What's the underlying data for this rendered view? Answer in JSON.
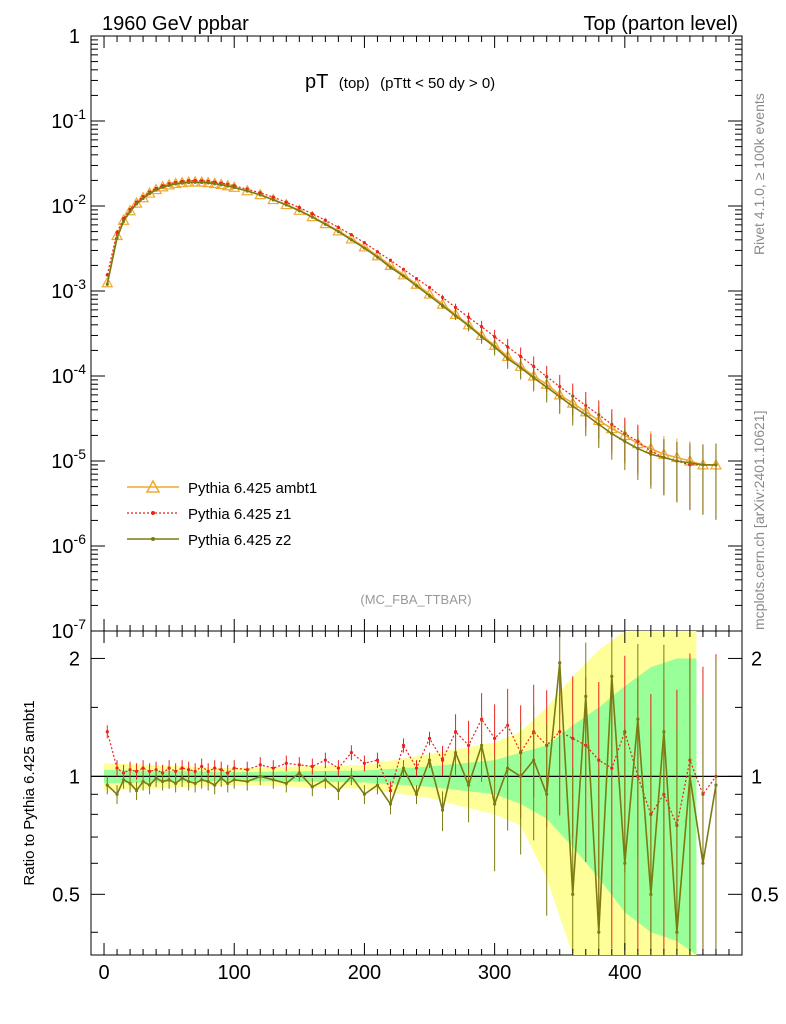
{
  "header": {
    "left": "1960 GeV ppbar",
    "right": "Top (parton level)"
  },
  "side": {
    "rivet": "Rivet 4.1.0, ≥ 100k events",
    "mcplots": "mcplots.cern.ch [arXiv:2401.10621]"
  },
  "main_title": {
    "main": "pT",
    "sub1": "(top)",
    "sub2": "(pTtt < 50 dy > 0)"
  },
  "analysis_label": "(MC_FBA_TTBAR)",
  "ratio_ylabel": "Ratio to Pythia 6.425 ambt1",
  "colors": {
    "ambt1": "#f0a830",
    "z1": "#e8231c",
    "z2": "#7b7b12",
    "band_yellow": "#ffff99",
    "band_green": "#99ff99"
  },
  "chart_data": [
    {
      "type": "line",
      "yscale": "log",
      "ylim": [
        1e-07,
        1
      ],
      "xlim": [
        -10,
        490
      ],
      "yticklabels": [
        "1",
        "10^-1",
        "10^-2",
        "10^-3",
        "10^-4",
        "10^-5",
        "10^-6",
        "10^-7"
      ],
      "legend_position": "middle-left",
      "x": [
        2.5,
        10,
        15,
        20,
        25,
        30,
        35,
        40,
        45,
        50,
        55,
        60,
        65,
        70,
        75,
        80,
        85,
        90,
        95,
        100,
        110,
        120,
        130,
        140,
        150,
        160,
        170,
        180,
        190,
        200,
        210,
        220,
        230,
        240,
        250,
        260,
        270,
        280,
        290,
        300,
        310,
        320,
        330,
        340,
        350,
        360,
        370,
        380,
        390,
        400,
        410,
        420,
        430,
        440,
        450,
        460,
        470
      ],
      "series": [
        {
          "name": "Pythia 6.425 ambt1",
          "marker": "triangle",
          "values": [
            0.00125,
            0.0045,
            0.0068,
            0.0088,
            0.0108,
            0.0125,
            0.0142,
            0.0156,
            0.0168,
            0.0177,
            0.0184,
            0.0188,
            0.0191,
            0.0192,
            0.0191,
            0.0188,
            0.0184,
            0.0179,
            0.0173,
            0.0166,
            0.0151,
            0.0136,
            0.0119,
            0.0104,
            0.0089,
            0.0075,
            0.0062,
            0.0051,
            0.0041,
            0.0033,
            0.0026,
            0.002,
            0.00155,
            0.0012,
            0.00092,
            0.0007,
            0.00053,
            0.0004,
            0.0003,
            0.00023,
            0.00017,
            0.00013,
            0.0001,
            8e-05,
            6e-05,
            4.8e-05,
            3.8e-05,
            3e-05,
            2.4e-05,
            2e-05,
            1.6e-05,
            1.4e-05,
            1.2e-05,
            1.1e-05,
            1e-05,
            9e-06,
            9e-06
          ]
        },
        {
          "name": "Pythia 6.425 z1",
          "marker": "dot",
          "values": [
            0.00155,
            0.0049,
            0.0071,
            0.0091,
            0.0111,
            0.0129,
            0.0146,
            0.0161,
            0.0173,
            0.0183,
            0.019,
            0.0195,
            0.0198,
            0.0199,
            0.0198,
            0.0195,
            0.0191,
            0.0186,
            0.018,
            0.0173,
            0.0158,
            0.0143,
            0.0127,
            0.0111,
            0.0096,
            0.0081,
            0.0068,
            0.0056,
            0.0046,
            0.0037,
            0.0029,
            0.0023,
            0.0018,
            0.0014,
            0.0011,
            0.00084,
            0.00064,
            0.00049,
            0.00038,
            0.00029,
            0.00022,
            0.00017,
            0.00013,
            9.8e-05,
            7.5e-05,
            5.8e-05,
            4.5e-05,
            3.5e-05,
            2.7e-05,
            2.1e-05,
            1.7e-05,
            1.3e-05,
            1.1e-05,
            1e-05,
            9e-06,
            9e-06,
            9e-06
          ]
        },
        {
          "name": "Pythia 6.425 z2",
          "marker": "dot",
          "values": [
            0.0012,
            0.0042,
            0.0066,
            0.0086,
            0.0106,
            0.0123,
            0.014,
            0.0154,
            0.0166,
            0.0175,
            0.0182,
            0.0186,
            0.0189,
            0.019,
            0.0189,
            0.0187,
            0.0183,
            0.0178,
            0.0172,
            0.0165,
            0.015,
            0.0135,
            0.0118,
            0.0103,
            0.0088,
            0.0074,
            0.0061,
            0.005,
            0.004,
            0.0032,
            0.0025,
            0.0019,
            0.0015,
            0.00115,
            0.00088,
            0.00067,
            0.00051,
            0.00039,
            0.00029,
            0.00022,
            0.00016,
            0.000125,
            9.5e-05,
            7.4e-05,
            5.7e-05,
            4.4e-05,
            3.5e-05,
            2.7e-05,
            2.1e-05,
            1.7e-05,
            1.4e-05,
            1.2e-05,
            1.1e-05,
            1e-05,
            9.5e-06,
            9e-06,
            9e-06
          ]
        }
      ]
    },
    {
      "type": "line",
      "ylim": [
        0.35,
        2.35
      ],
      "xlim": [
        -10,
        490
      ],
      "xticklabels": [
        "0",
        "100",
        "200",
        "300",
        "400"
      ],
      "yticklabels": [
        "0.5",
        "1",
        "2"
      ],
      "ylabel": "Ratio to Pythia 6.425 ambt1",
      "bands": [
        {
          "name": "yellow",
          "x": [
            0,
            100,
            200,
            250,
            300,
            320,
            340,
            360,
            380,
            400,
            420,
            440,
            455
          ],
          "lo": [
            0.92,
            0.95,
            0.93,
            0.88,
            0.8,
            0.75,
            0.55,
            0.35,
            0.35,
            0.35,
            0.35,
            0.35,
            0.35
          ],
          "hi": [
            1.08,
            1.05,
            1.07,
            1.14,
            1.22,
            1.3,
            1.5,
            1.8,
            2.1,
            2.35,
            2.35,
            2.35,
            2.35
          ]
        },
        {
          "name": "green",
          "x": [
            0,
            100,
            200,
            250,
            300,
            320,
            340,
            360,
            380,
            400,
            420,
            440,
            455
          ],
          "lo": [
            0.96,
            0.975,
            0.965,
            0.94,
            0.9,
            0.85,
            0.78,
            0.66,
            0.55,
            0.45,
            0.4,
            0.38,
            0.35
          ],
          "hi": [
            1.04,
            1.025,
            1.035,
            1.06,
            1.1,
            1.15,
            1.2,
            1.35,
            1.5,
            1.7,
            1.9,
            2.0,
            2.0
          ]
        }
      ],
      "series": [
        {
          "name": "Pythia 6.425 z1",
          "values": [
            1.3,
            1.05,
            1.02,
            1.04,
            1.03,
            1.05,
            1.03,
            1.04,
            1.02,
            1.05,
            1.03,
            1.05,
            1.04,
            1.03,
            1.06,
            1.03,
            1.05,
            1.04,
            1.02,
            1.05,
            1.04,
            1.07,
            1.05,
            1.08,
            1.07,
            1.06,
            1.1,
            1.05,
            1.15,
            1.08,
            1.1,
            0.92,
            1.2,
            1.05,
            1.25,
            1.1,
            1.3,
            1.2,
            1.4,
            1.25,
            1.35,
            1.15,
            1.3,
            1.2,
            1.3,
            1.25,
            1.2,
            1.1,
            1.05,
            1.3,
            1.0,
            0.8,
            0.9,
            0.75,
            1.1,
            0.9,
            1.0
          ]
        },
        {
          "name": "Pythia 6.425 z2",
          "values": [
            0.95,
            0.9,
            0.98,
            0.96,
            0.92,
            0.97,
            0.95,
            0.99,
            0.97,
            0.98,
            0.96,
            0.99,
            0.97,
            0.96,
            0.98,
            0.97,
            0.95,
            0.99,
            0.96,
            0.98,
            0.97,
            1.0,
            0.98,
            0.96,
            1.02,
            0.94,
            0.98,
            0.92,
            1.0,
            0.9,
            0.95,
            0.85,
            1.05,
            0.9,
            1.1,
            0.82,
            1.15,
            0.95,
            1.2,
            0.85,
            1.05,
            1.0,
            1.1,
            0.9,
            1.95,
            0.5,
            1.6,
            0.4,
            1.8,
            0.6,
            1.4,
            0.5,
            1.3,
            0.4,
            1.0,
            0.6,
            0.95
          ]
        }
      ]
    }
  ]
}
